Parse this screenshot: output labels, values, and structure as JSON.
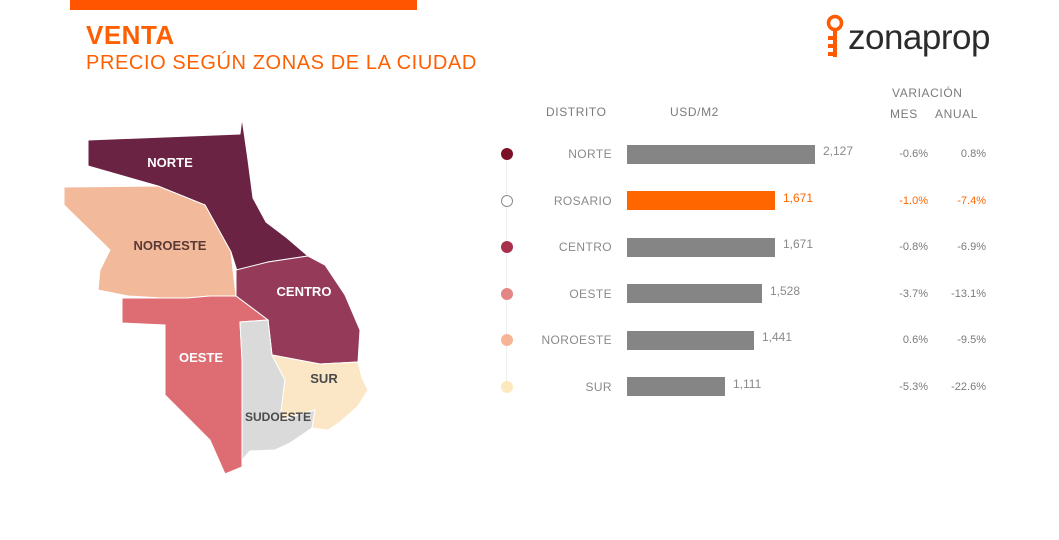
{
  "header": {
    "title": "VENTA",
    "subtitle": "PRECIO SEGÚN ZONAS DE LA CIUDAD",
    "brand": "zonaprop",
    "accent_color": "#ff5f00"
  },
  "map": {
    "zones": [
      {
        "key": "norte",
        "label": "NORTE",
        "color": "#6b2343"
      },
      {
        "key": "noroeste",
        "label": "NOROESTE",
        "color": "#f2b99a"
      },
      {
        "key": "centro",
        "label": "CENTRO",
        "color": "#953a58"
      },
      {
        "key": "oeste",
        "label": "OESTE",
        "color": "#dd6d72"
      },
      {
        "key": "sudoeste",
        "label": "SUDOESTE",
        "color": "#dadada"
      },
      {
        "key": "sur",
        "label": "SUR",
        "color": "#fbe6c6"
      }
    ]
  },
  "table_headers": {
    "distrito": "DISTRITO",
    "usd_m2": "USD/M2",
    "variacion": "VARIACIÓN",
    "mes": "MES",
    "anual": "ANUAL"
  },
  "chart_data": {
    "type": "bar",
    "orientation": "horizontal",
    "categories": [
      "NORTE",
      "ROSARIO",
      "CENTRO",
      "OESTE",
      "NOROESTE",
      "SUR"
    ],
    "values": [
      2127,
      1671,
      1671,
      1528,
      1441,
      1111
    ],
    "value_labels": [
      "2,127",
      "1,671",
      "1,671",
      "1,528",
      "1,441",
      "1,111"
    ],
    "variacion_mes": [
      "-0.6%",
      "-1.0%",
      "-0.8%",
      "-3.7%",
      "0.6%",
      "-5.3%"
    ],
    "variacion_anual": [
      "0.8%",
      "-7.4%",
      "-6.9%",
      "-13.1%",
      "-9.5%",
      "-22.6%"
    ],
    "dot_colors": [
      "#7c1026",
      "#ffffff",
      "#a8304a",
      "#e48585",
      "#f6b596",
      "#fde9bd"
    ],
    "bar_color": "#858585",
    "highlight_color": "#ff6600",
    "highlight_index": 1,
    "xlim": [
      0,
      2127
    ]
  }
}
